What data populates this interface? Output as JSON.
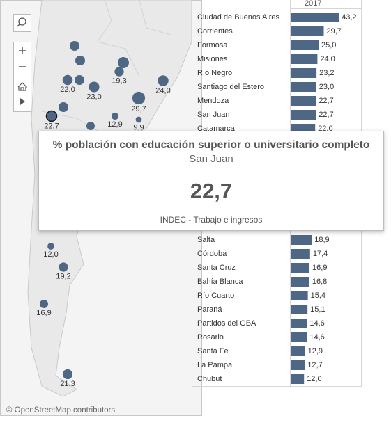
{
  "map": {
    "bubbles": [
      {
        "value": 22.0,
        "label": "22,0"
      },
      {
        "value": 23.0,
        "label": "23,0"
      },
      {
        "value": 19.3,
        "label": "19,3"
      },
      {
        "value": 24.0,
        "label": "24,0"
      },
      {
        "value": 29.7,
        "label": "29,7"
      },
      {
        "value": 22.7,
        "label": "22,7"
      },
      {
        "value": 12.9,
        "label": "12,9"
      },
      {
        "value": 9.9,
        "label": "9,9"
      },
      {
        "value": 12.0,
        "label": "12,0"
      },
      {
        "value": 19.2,
        "label": "19,2"
      },
      {
        "value": 16.9,
        "label": "16,9"
      },
      {
        "value": 21.3,
        "label": "21,3"
      }
    ],
    "attribution": "© OpenStreetMap contributors"
  },
  "bar_chart": {
    "column_header": "2017",
    "rows": [
      {
        "name": "Ciudad de Buenos Aires",
        "value": 43.2,
        "label": "43,2"
      },
      {
        "name": "Corrientes",
        "value": 29.7,
        "label": "29,7"
      },
      {
        "name": "Formosa",
        "value": 25.0,
        "label": "25,0"
      },
      {
        "name": "Misiones",
        "value": 24.0,
        "label": "24,0"
      },
      {
        "name": "Río Negro",
        "value": 23.2,
        "label": "23,2"
      },
      {
        "name": "Santiago del Estero",
        "value": 23.0,
        "label": "23,0"
      },
      {
        "name": "Mendoza",
        "value": 22.7,
        "label": "22,7"
      },
      {
        "name": "San Juan",
        "value": 22.7,
        "label": "22,7"
      },
      {
        "name": "Catamarca",
        "value": 22.0,
        "label": "22,0"
      },
      {
        "name": "Salta",
        "value": 18.9,
        "label": "18,9"
      },
      {
        "name": "Córdoba",
        "value": 17.4,
        "label": "17,4"
      },
      {
        "name": "Santa Cruz",
        "value": 16.9,
        "label": "16,9"
      },
      {
        "name": "Bahía Blanca",
        "value": 16.8,
        "label": "16,8"
      },
      {
        "name": "Río Cuarto",
        "value": 15.4,
        "label": "15,4"
      },
      {
        "name": "Paraná",
        "value": 15.1,
        "label": "15,1"
      },
      {
        "name": "Partidos del GBA",
        "value": 14.6,
        "label": "14,6"
      },
      {
        "name": "Rosario",
        "value": 14.6,
        "label": "14,6"
      },
      {
        "name": "Santa Fe",
        "value": 12.9,
        "label": "12,9"
      },
      {
        "name": "La Pampa",
        "value": 12.7,
        "label": "12,7"
      },
      {
        "name": "Chubut",
        "value": 12.0,
        "label": "12,0"
      }
    ]
  },
  "tooltip": {
    "title": "% población con educación superior o universitario completo",
    "subtitle": "San Juan",
    "value": 22.7,
    "value_label": "22,7",
    "source": "INDEC - Trabajo e ingresos"
  }
}
